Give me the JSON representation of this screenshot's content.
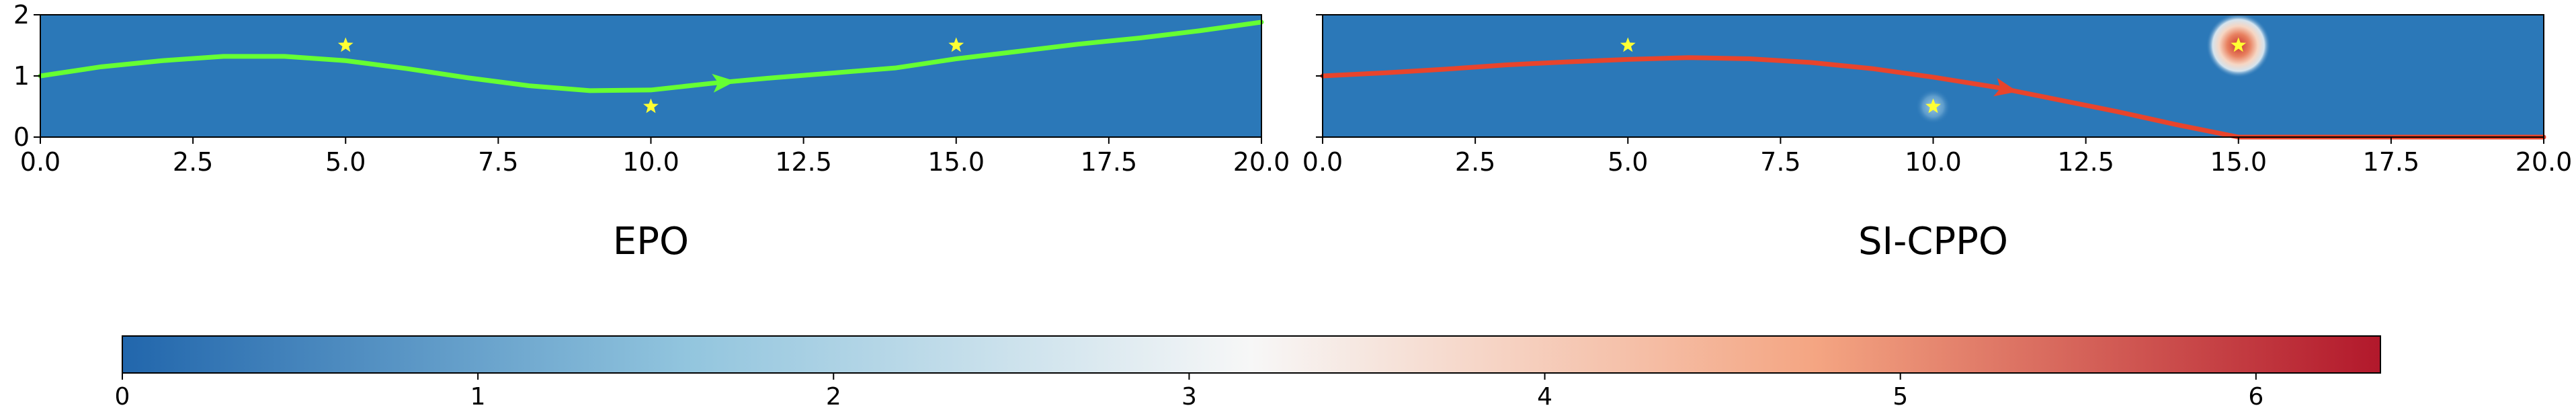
{
  "chart_data": [
    {
      "type": "line",
      "title": "EPO",
      "xlim": [
        0,
        20
      ],
      "ylim": [
        0,
        2
      ],
      "x_ticks": [
        "0.0",
        "2.5",
        "5.0",
        "7.5",
        "10.0",
        "12.5",
        "15.0",
        "17.5",
        "20.0"
      ],
      "y_ticks": [
        "0",
        "1",
        "2"
      ],
      "background_color": "#2b78b8",
      "line_color": "#66ff33",
      "series": [
        {
          "x": [
            0,
            1,
            2,
            3,
            4,
            5,
            6,
            7,
            8,
            9,
            10,
            11,
            12,
            13,
            14,
            15,
            16,
            17,
            18,
            19,
            20
          ],
          "y": [
            1.0,
            1.15,
            1.25,
            1.32,
            1.32,
            1.25,
            1.12,
            0.97,
            0.84,
            0.76,
            0.77,
            0.88,
            0.97,
            1.05,
            1.13,
            1.28,
            1.4,
            1.52,
            1.62,
            1.74,
            1.88
          ]
        }
      ],
      "arrow_at_x": 11.2,
      "stars": [
        {
          "x": 5,
          "y": 1.5
        },
        {
          "x": 10,
          "y": 0.5
        },
        {
          "x": 15,
          "y": 1.5
        }
      ],
      "hotspots": []
    },
    {
      "type": "line",
      "title": "SI-CPPO",
      "xlim": [
        0,
        20
      ],
      "ylim": [
        0,
        2
      ],
      "x_ticks": [
        "0.0",
        "2.5",
        "5.0",
        "7.5",
        "10.0",
        "12.5",
        "15.0",
        "17.5",
        "20.0"
      ],
      "y_ticks": [],
      "background_color": "#2b78b8",
      "line_color": "#e8442c",
      "series": [
        {
          "x": [
            0,
            1,
            2,
            3,
            4,
            5,
            6,
            7,
            8,
            9,
            10,
            11,
            12,
            13,
            14,
            15,
            16,
            17,
            18,
            19,
            20
          ],
          "y": [
            1.0,
            1.05,
            1.11,
            1.18,
            1.23,
            1.27,
            1.3,
            1.28,
            1.22,
            1.12,
            0.98,
            0.82,
            0.62,
            0.42,
            0.2,
            0.0,
            0.0,
            0.0,
            0.0,
            0.0,
            0.0
          ]
        }
      ],
      "arrow_at_x": 11.2,
      "stars": [
        {
          "x": 5,
          "y": 1.5
        },
        {
          "x": 10,
          "y": 0.5
        },
        {
          "x": 15,
          "y": 1.5
        }
      ],
      "hotspots": [
        {
          "x": 15,
          "y": 1.5,
          "value": 6.4
        },
        {
          "x": 10,
          "y": 0.5,
          "value": 1.2
        }
      ]
    }
  ],
  "colorbar": {
    "ticks": [
      "0",
      "1",
      "2",
      "3",
      "4",
      "5",
      "6"
    ],
    "range": [
      0,
      6.35
    ],
    "stops": [
      "#2166ac",
      "#92c5de",
      "#f7f7f7",
      "#f4a582",
      "#b2182b"
    ]
  },
  "star_color": "#ffff33"
}
